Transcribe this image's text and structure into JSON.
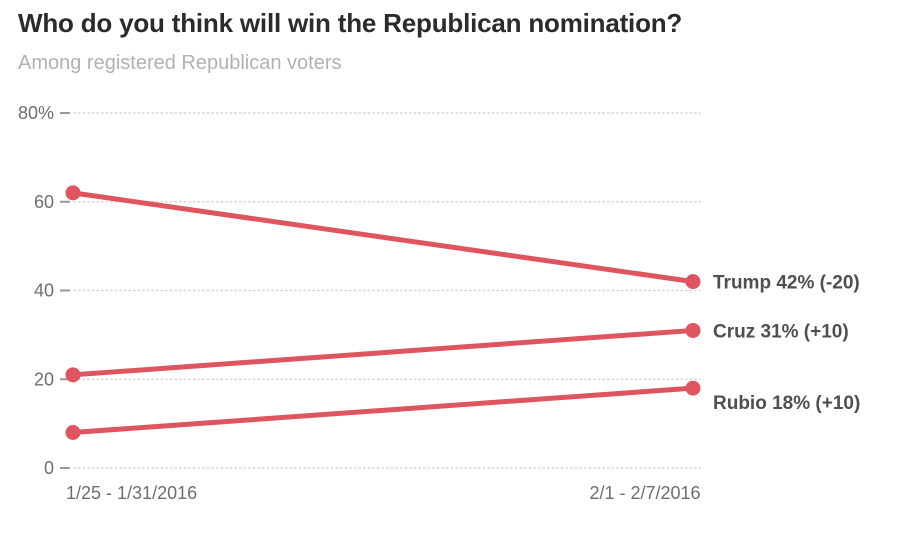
{
  "header": {
    "title": "Who do you think will win the Republican nomination?",
    "subtitle": "Among registered Republican voters"
  },
  "colors": {
    "line": "#de545f",
    "grid": "#d4d4d4",
    "tick": "#9a9a9a",
    "tick_label": "#6e6e6e",
    "axis_label": "#6e6e6e",
    "series_label": "#4f4f4f",
    "title": "#2b2b2b",
    "subtitle": "#b1b1b1",
    "background": "#ffffff"
  },
  "chart_data": {
    "type": "line",
    "title": "Who do you think will win the Republican nomination?",
    "subtitle": "Among registered Republican voters",
    "categories": [
      "1/25 - 1/31/2016",
      "2/1 - 2/7/2016"
    ],
    "series": [
      {
        "name": "Trump",
        "values": [
          62,
          42
        ],
        "label": "Trump 42% (-20)"
      },
      {
        "name": "Cruz",
        "values": [
          21,
          31
        ],
        "label": "Cruz 31% (+10)"
      },
      {
        "name": "Rubio",
        "values": [
          8,
          18
        ],
        "label": "Rubio 18% (+10)"
      }
    ],
    "xlabel": "",
    "ylabel": "",
    "ylim": [
      0,
      80
    ],
    "yticks": [
      0,
      20,
      40,
      60,
      80
    ],
    "ytick_labels": [
      "0",
      "20",
      "40",
      "60",
      "80%"
    ],
    "grid": "horizontal-dotted",
    "legend_position": "right-of-last-point"
  }
}
